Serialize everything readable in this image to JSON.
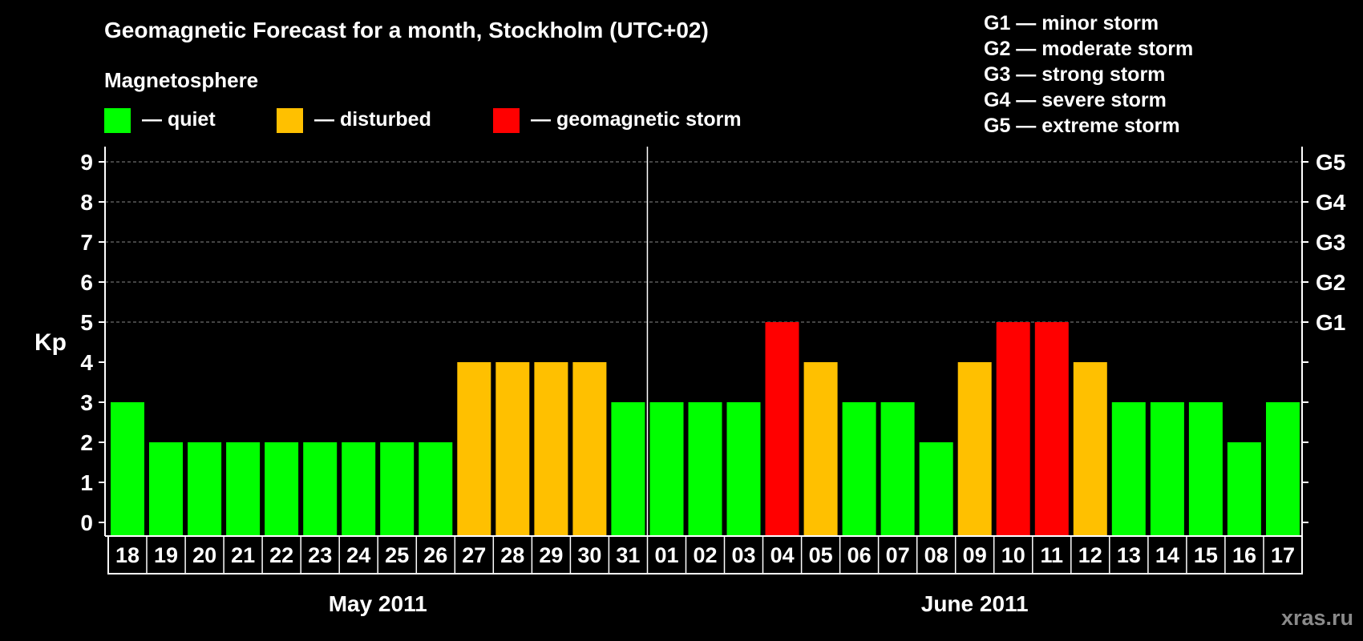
{
  "chart_data": {
    "type": "bar",
    "title": "Geomagnetic Forecast for a month, Stockholm (UTC+02)",
    "subtitle": "Magnetosphere",
    "ylabel": "Kp",
    "ylim": [
      0,
      9
    ],
    "yticks": [
      "0",
      "1",
      "2",
      "3",
      "4",
      "5",
      "6",
      "7",
      "8",
      "9"
    ],
    "right_axis_labels": [
      {
        "kp": 5,
        "label": "G1"
      },
      {
        "kp": 6,
        "label": "G2"
      },
      {
        "kp": 7,
        "label": "G3"
      },
      {
        "kp": 8,
        "label": "G4"
      },
      {
        "kp": 9,
        "label": "G5"
      }
    ],
    "categories": [
      "18",
      "19",
      "20",
      "21",
      "22",
      "23",
      "24",
      "25",
      "26",
      "27",
      "28",
      "29",
      "30",
      "31",
      "01",
      "02",
      "03",
      "04",
      "05",
      "06",
      "07",
      "08",
      "09",
      "10",
      "11",
      "12",
      "13",
      "14",
      "15",
      "16",
      "17"
    ],
    "values": [
      3,
      2,
      2,
      2,
      2,
      2,
      2,
      2,
      2,
      4,
      4,
      4,
      4,
      3,
      3,
      3,
      3,
      5,
      4,
      3,
      3,
      2,
      4,
      5,
      5,
      4,
      3,
      3,
      3,
      2,
      3
    ],
    "levels": [
      "quiet",
      "quiet",
      "quiet",
      "quiet",
      "quiet",
      "quiet",
      "quiet",
      "quiet",
      "quiet",
      "disturbed",
      "disturbed",
      "disturbed",
      "disturbed",
      "quiet",
      "quiet",
      "quiet",
      "quiet",
      "storm",
      "disturbed",
      "quiet",
      "quiet",
      "quiet",
      "disturbed",
      "storm",
      "storm",
      "disturbed",
      "quiet",
      "quiet",
      "quiet",
      "quiet",
      "quiet"
    ],
    "months": [
      {
        "label": "May 2011",
        "start": 0,
        "end": 13
      },
      {
        "label": "June 2011",
        "start": 14,
        "end": 30
      }
    ],
    "legend": [
      {
        "key": "quiet",
        "label": "— quiet",
        "color": "#00ff00"
      },
      {
        "key": "disturbed",
        "label": "— disturbed",
        "color": "#ffc000"
      },
      {
        "key": "storm",
        "label": "— geomagnetic storm",
        "color": "#ff0000"
      }
    ],
    "storm_scale": [
      "G1 — minor storm",
      "G2 — moderate storm",
      "G3 — strong storm",
      "G4 — severe storm",
      "G5 — extreme storm"
    ],
    "grid": true
  },
  "watermark": "xras.ru",
  "colors": {
    "background": "#000000",
    "foreground": "#ffffff",
    "grid": "#888888",
    "watermark": "#8a8a8a"
  }
}
